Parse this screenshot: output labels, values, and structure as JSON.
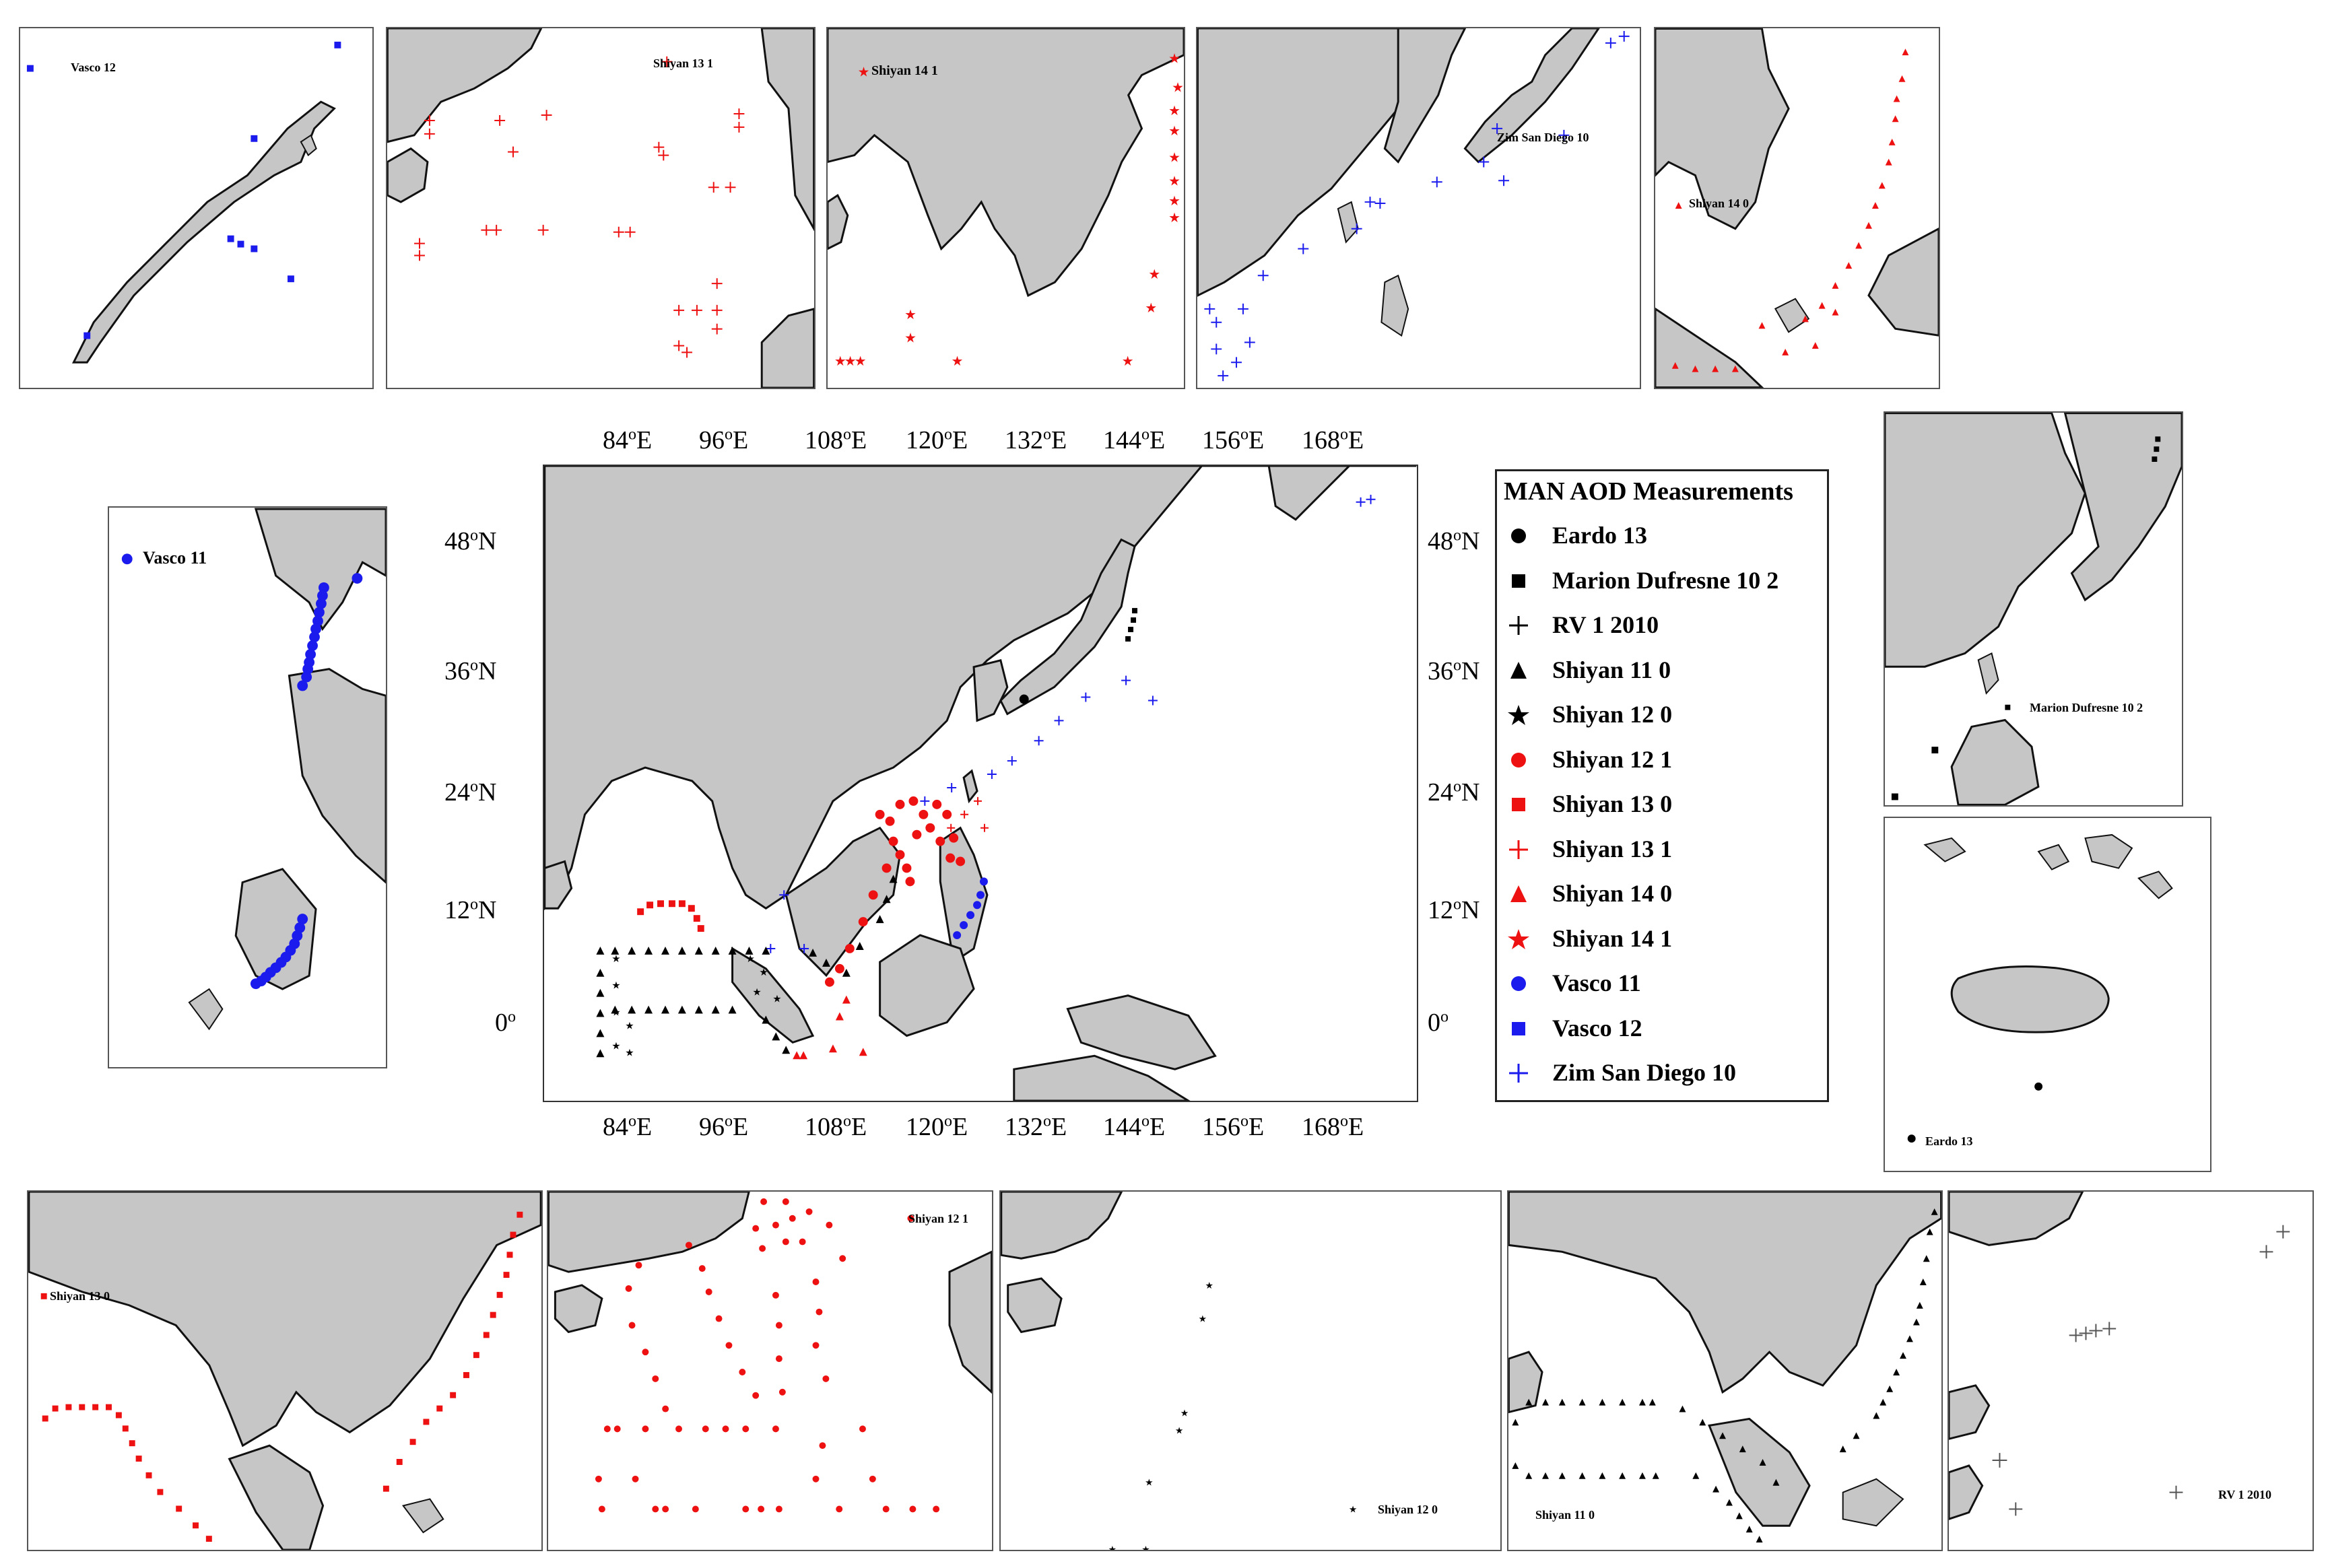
{
  "colors": {
    "land": "#c6c6c6",
    "coast": "#111111",
    "red": "#ee1111",
    "blue": "#1b1bee",
    "black": "#000000"
  },
  "main_map": {
    "lon_ticks": [
      "84oE",
      "96oE",
      "108oE",
      "120oE",
      "132oE",
      "144oE",
      "156oE",
      "168oE"
    ],
    "lat_ticks_left": [
      "48oN",
      "36oN",
      "24oN",
      "12oN",
      "0o"
    ],
    "lat_ticks_right": [
      "48oN",
      "36oN",
      "24oN",
      "12oN",
      "0o"
    ]
  },
  "legend": {
    "title": "MAN AOD Measurements",
    "items": [
      {
        "label": "Eardo 13",
        "marker": "circle",
        "color": "#000000"
      },
      {
        "label": "Marion Dufresne 10 2",
        "marker": "square",
        "color": "#000000"
      },
      {
        "label": "RV 1 2010",
        "marker": "plus",
        "color": "#000000"
      },
      {
        "label": "Shiyan 11 0",
        "marker": "triangle",
        "color": "#000000"
      },
      {
        "label": "Shiyan 12 0",
        "marker": "star",
        "color": "#000000"
      },
      {
        "label": "Shiyan 12 1",
        "marker": "circle",
        "color": "#ee1111"
      },
      {
        "label": "Shiyan 13 0",
        "marker": "square",
        "color": "#ee1111"
      },
      {
        "label": "Shiyan 13 1",
        "marker": "plus",
        "color": "#ee1111"
      },
      {
        "label": "Shiyan 14 0",
        "marker": "triangle",
        "color": "#ee1111"
      },
      {
        "label": "Shiyan 14 1",
        "marker": "star",
        "color": "#ee1111"
      },
      {
        "label": "Vasco 11",
        "marker": "circle",
        "color": "#1b1bee"
      },
      {
        "label": "Vasco 12",
        "marker": "square",
        "color": "#1b1bee"
      },
      {
        "label": "Zim San Diego 10",
        "marker": "plus",
        "color": "#1b1bee"
      }
    ]
  },
  "insets": {
    "vasco12": "Vasco 12",
    "shiyan131": "Shiyan 13 1",
    "shiyan141": "Shiyan 14 1",
    "zim": "Zim San Diego 10",
    "shiyan140": "Shiyan 14 0",
    "vasco11": "Vasco 11",
    "marion": "Marion Dufresne 10 2",
    "eardo": "Eardo 13",
    "shiyan130": "Shiyan 13 0",
    "shiyan121": "Shiyan 12 1",
    "shiyan120": "Shiyan 12 0",
    "shiyan110": "Shiyan 11 0",
    "rv": "RV 1 2010"
  }
}
